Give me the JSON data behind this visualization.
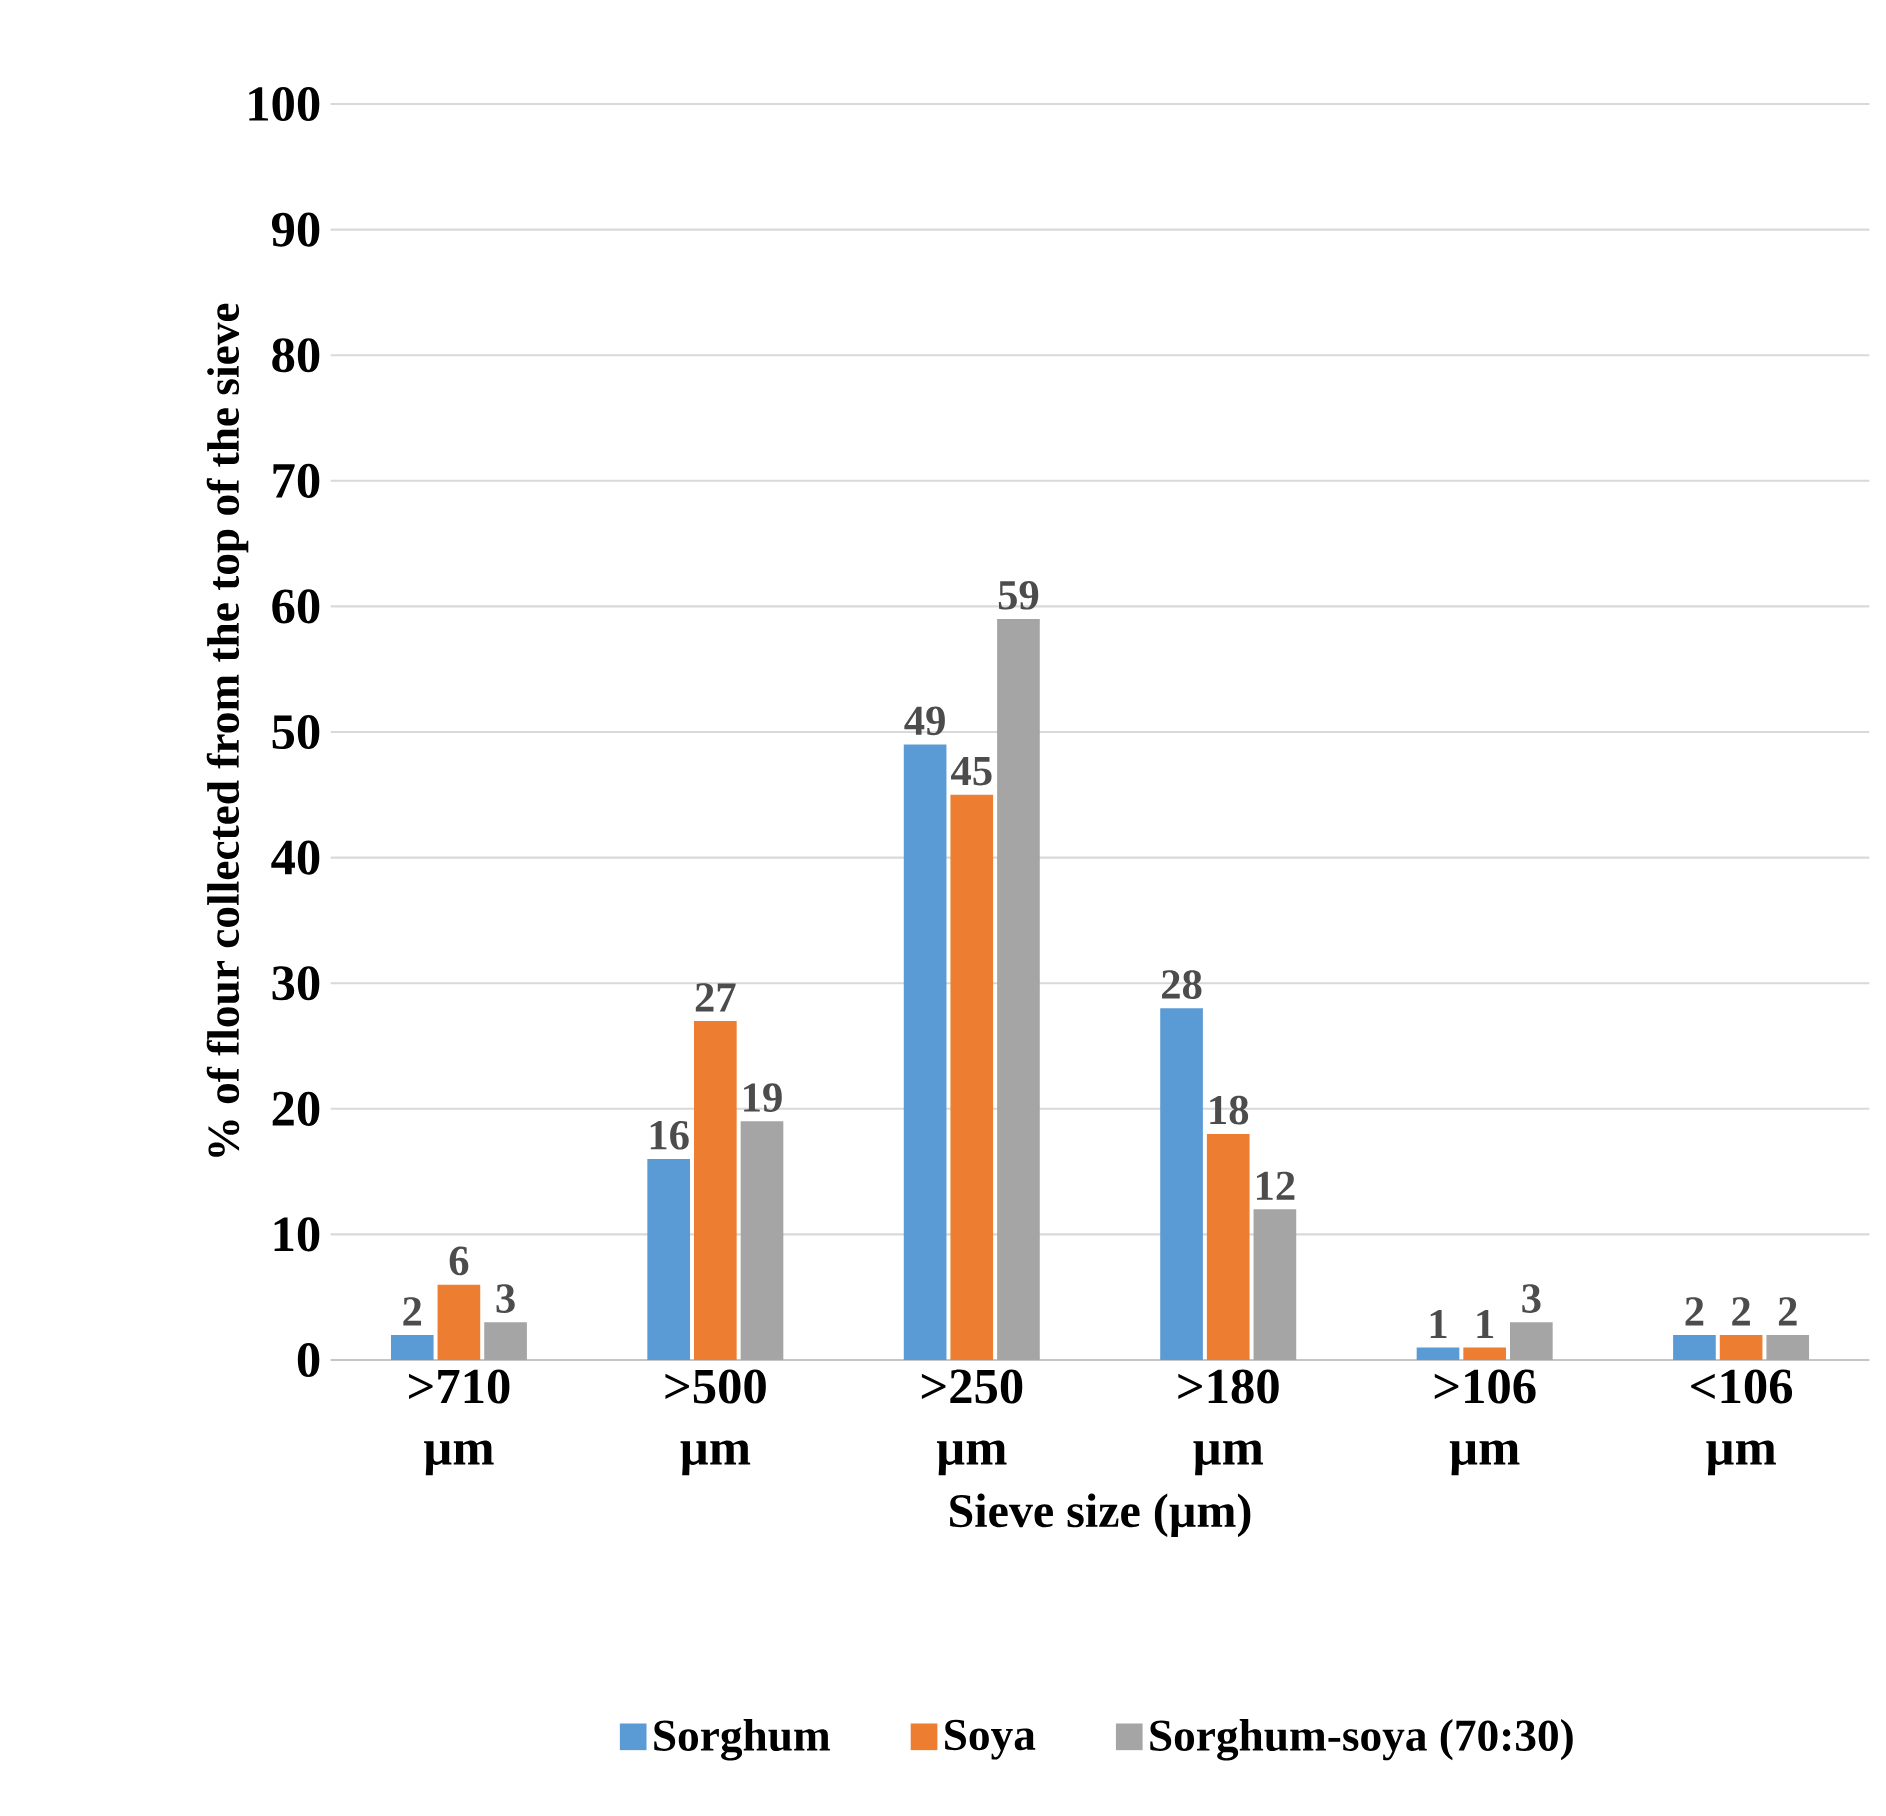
{
  "chart_data": {
    "type": "bar",
    "xlabel": "Sieve size (µm)",
    "ylabel": "% of flour collected from the top of the sieve",
    "categories": [
      ">710 µm",
      ">500 µm",
      ">250 µm",
      ">180 µm",
      ">106 µm",
      "<106 µm"
    ],
    "series": [
      {
        "name": "Sorghum",
        "color": "#5b9bd5",
        "values": [
          2,
          16,
          49,
          28,
          1,
          2
        ]
      },
      {
        "name": "Soya",
        "color": "#ed7d31",
        "values": [
          6,
          27,
          45,
          18,
          1,
          2
        ]
      },
      {
        "name": "Sorghum-soya (70:30)",
        "color": "#a5a5a5",
        "values": [
          3,
          19,
          59,
          12,
          3,
          2
        ]
      }
    ],
    "ylim": [
      0,
      100
    ],
    "yticks": [
      0,
      10,
      20,
      30,
      40,
      50,
      60,
      70,
      80,
      90,
      100
    ],
    "grid": "y",
    "legend": "bottom",
    "data_labels": true
  }
}
